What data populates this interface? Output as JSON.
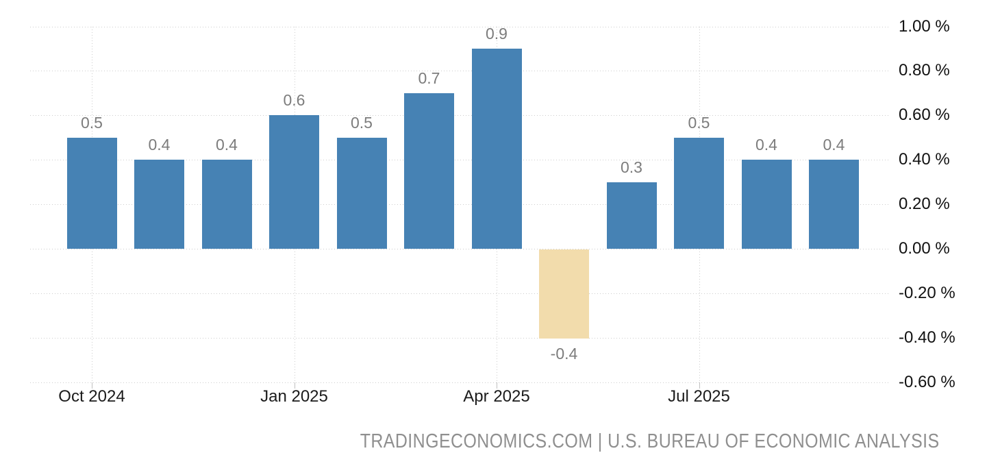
{
  "chart_data": {
    "type": "bar",
    "title": "",
    "xlabel": "",
    "ylabel": "",
    "categories": [
      "Oct 2024",
      "Nov 2024",
      "Dec 2024",
      "Jan 2025",
      "Feb 2025",
      "Mar 2025",
      "Apr 2025",
      "May 2025",
      "Jun 2025",
      "Jul 2025",
      "Aug 2025",
      "Sep 2025"
    ],
    "values": [
      0.5,
      0.4,
      0.4,
      0.6,
      0.5,
      0.7,
      0.9,
      -0.4,
      0.3,
      0.5,
      0.4,
      0.4
    ],
    "value_labels": [
      "0.5",
      "0.4",
      "0.4",
      "0.6",
      "0.5",
      "0.7",
      "0.9",
      "-0.4",
      "0.3",
      "0.5",
      "0.4",
      "0.4"
    ],
    "x_tick_labels": [
      "Oct 2024",
      "Jan 2025",
      "Apr 2025",
      "Jul 2025"
    ],
    "x_tick_indices": [
      0,
      3,
      6,
      9
    ],
    "y_tick_labels": [
      "1.00 %",
      "0.80 %",
      "0.60 %",
      "0.40 %",
      "0.20 %",
      "0.00 %",
      "-0.20 %",
      "-0.40 %",
      "-0.60 %"
    ],
    "y_tick_values": [
      1.0,
      0.8,
      0.6,
      0.4,
      0.2,
      0.0,
      -0.2,
      -0.4,
      -0.6
    ],
    "ylim": [
      -0.6,
      1.0
    ],
    "grid": true,
    "legend_position": "none",
    "colors": {
      "bar_positive": "#4682b4",
      "bar_negative": "#f2dcac",
      "value_label": "#7c7c7c",
      "axis_label": "#1b1b1b",
      "gridline": "#cccccc",
      "background": "#ffffff",
      "footer_text": "#8f8f8f"
    }
  },
  "footer": {
    "attribution": "TRADINGECONOMICS.COM | U.S. BUREAU OF ECONOMIC ANALYSIS"
  }
}
